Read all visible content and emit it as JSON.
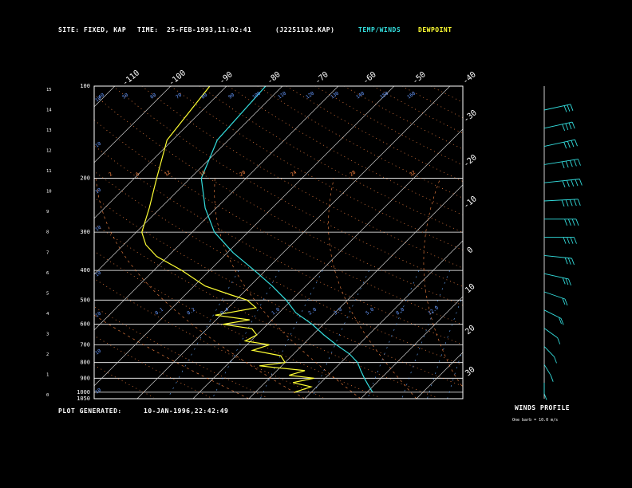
{
  "header": {
    "site_label": "SITE:",
    "site_value": "FIXED, KAP",
    "time_label": "TIME:",
    "time_value": "25-FEB-1993,11:02:41",
    "file_id": "(J2251102.KAP)",
    "temp_legend": "TEMP/WINDS",
    "dew_legend": "DEWPOINT"
  },
  "footer": {
    "generated_label": "PLOT GENERATED:",
    "generated_value": "10-JAN-1996,22:42:49",
    "winds_title": "WINDS PROFILE",
    "barb_note": "One barb = 10.0 m/s"
  },
  "colors": {
    "temp": "#33dddd",
    "dew": "#ffff33",
    "isotherm": "#cccccc",
    "dry_adiabat": "#ff8844",
    "moist_adiabat": "#ff8844",
    "mixing_ratio": "#66aaff",
    "wind": "#33dddd"
  },
  "chart_data": {
    "type": "line",
    "title": "",
    "xlabel": "",
    "ylabel": "",
    "pressure_levels": [
      100,
      200,
      300,
      400,
      500,
      600,
      700,
      800,
      900,
      1000,
      1050
    ],
    "pressure_tick_labels": [
      "100",
      "200",
      "300",
      "400",
      "500",
      "600",
      "700",
      "800",
      "900",
      "1000",
      "1050"
    ],
    "height_km_ticks": [
      "15",
      "14",
      "13",
      "12",
      "11",
      "10",
      "9",
      "8",
      "7",
      "6",
      "5",
      "4",
      "3",
      "2",
      "1",
      "0"
    ],
    "isotherm_top_labels": [
      "-110",
      "-100",
      "-90",
      "-80",
      "-70",
      "-60",
      "-50",
      "-40"
    ],
    "isotherm_right_labels": [
      "-30",
      "-20",
      "-10",
      "0",
      "10",
      "20",
      "30"
    ],
    "dry_adiabat_labels": [
      "40",
      "50",
      "60",
      "70",
      "80",
      "90",
      "100",
      "110",
      "120",
      "130",
      "140",
      "150",
      "160"
    ],
    "mixing_ratio_labels": [
      "2",
      "6",
      "12",
      "16",
      "20",
      "24",
      "28",
      "32"
    ],
    "moist_labels": [
      "0.1",
      "0.2",
      "0.4",
      "1.0",
      "2.0",
      "3.0",
      "5.0",
      "8.0",
      "12.0"
    ],
    "left_mixing_labels": [
      "10",
      "10",
      "10",
      "10",
      "10",
      "10",
      "10",
      "10"
    ],
    "series": [
      {
        "name": "TEMP/WINDS",
        "points": [
          [
            100,
            -63
          ],
          [
            150,
            -62
          ],
          [
            200,
            -58
          ],
          [
            250,
            -52
          ],
          [
            300,
            -46
          ],
          [
            350,
            -39
          ],
          [
            400,
            -32
          ],
          [
            450,
            -26
          ],
          [
            500,
            -21
          ],
          [
            550,
            -17
          ],
          [
            600,
            -12
          ],
          [
            650,
            -8
          ],
          [
            700,
            -4
          ],
          [
            750,
            0
          ],
          [
            800,
            3
          ],
          [
            850,
            5
          ],
          [
            900,
            7
          ],
          [
            950,
            9
          ],
          [
            1000,
            11
          ]
        ]
      },
      {
        "name": "DEWPOINT",
        "points": [
          [
            100,
            -73
          ],
          [
            150,
            -71
          ],
          [
            200,
            -66
          ],
          [
            250,
            -62
          ],
          [
            300,
            -59
          ],
          [
            330,
            -56
          ],
          [
            360,
            -52
          ],
          [
            400,
            -45
          ],
          [
            450,
            -38
          ],
          [
            480,
            -32
          ],
          [
            500,
            -28
          ],
          [
            530,
            -25
          ],
          [
            560,
            -31
          ],
          [
            580,
            -24
          ],
          [
            600,
            -28
          ],
          [
            620,
            -22
          ],
          [
            650,
            -20
          ],
          [
            680,
            -21
          ],
          [
            700,
            -16
          ],
          [
            730,
            -18
          ],
          [
            760,
            -12
          ],
          [
            800,
            -10
          ],
          [
            820,
            -14
          ],
          [
            850,
            -5
          ],
          [
            880,
            -7
          ],
          [
            900,
            -2
          ],
          [
            930,
            -5
          ],
          [
            960,
            -1
          ],
          [
            1000,
            -3
          ]
        ]
      }
    ],
    "wind_profile": {
      "speed_ms": [
        5,
        8,
        10,
        12,
        15,
        20,
        25,
        30,
        35,
        40,
        45,
        50,
        48,
        42,
        35,
        30
      ],
      "direction_deg": [
        180,
        200,
        210,
        220,
        230,
        240,
        250,
        260,
        270,
        270,
        275,
        280,
        285,
        290,
        290,
        290
      ]
    }
  }
}
